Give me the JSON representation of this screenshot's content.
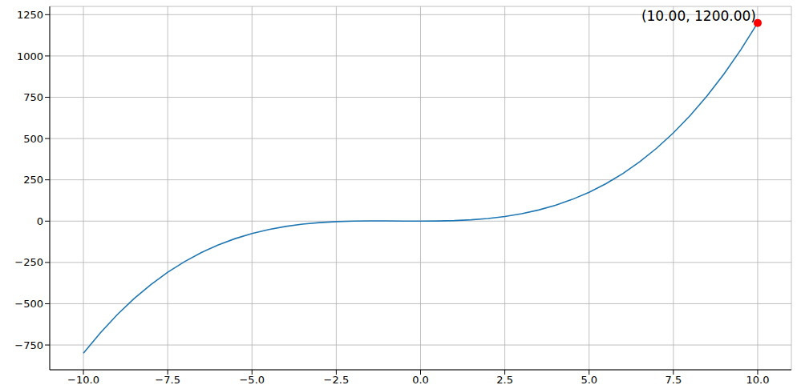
{
  "chart_data": {
    "type": "line",
    "x": [
      -10,
      -9.5,
      -9,
      -8.5,
      -8,
      -7.5,
      -7,
      -6.5,
      -6,
      -5.5,
      -5,
      -4.5,
      -4,
      -3.5,
      -3,
      -2.5,
      -2,
      -1.5,
      -1,
      -0.5,
      0,
      0.5,
      1,
      1.5,
      2,
      2.5,
      3,
      3.5,
      4,
      4.5,
      5,
      5.5,
      6,
      6.5,
      7,
      7.5,
      8,
      8.5,
      9,
      9.5,
      10
    ],
    "values": [
      -800,
      -676.9,
      -567,
      -469.6,
      -384,
      -309.4,
      -245,
      -190.1,
      -144,
      -105.9,
      -75,
      -50.6,
      -32,
      -18.4,
      -9,
      -3.1,
      0,
      1.1,
      1,
      0.4,
      0,
      0.6,
      3,
      7.9,
      16,
      28.1,
      45,
      67.4,
      96,
      131.6,
      175,
      226.9,
      288,
      359.1,
      441,
      534.4,
      640,
      758.6,
      891,
      1037.9,
      1200
    ],
    "color": "#1f77b4",
    "xlim": [
      -11,
      11
    ],
    "xticks": [
      {
        "value": -10,
        "label": "−10.0"
      },
      {
        "value": -7.5,
        "label": "−7.5"
      },
      {
        "value": -5,
        "label": "−5.0"
      },
      {
        "value": -2.5,
        "label": "−2.5"
      },
      {
        "value": 0,
        "label": "0.0"
      },
      {
        "value": 2.5,
        "label": "2.5"
      },
      {
        "value": 5,
        "label": "5.0"
      },
      {
        "value": 7.5,
        "label": "7.5"
      },
      {
        "value": 10,
        "label": "10.0"
      }
    ],
    "ylim": [
      -900,
      1300
    ],
    "yticks": [
      {
        "value": -750,
        "label": "−750"
      },
      {
        "value": -500,
        "label": "−500"
      },
      {
        "value": -250,
        "label": "−250"
      },
      0,
      250,
      500,
      750,
      1000,
      1250
    ],
    "grid": true,
    "annotations": [
      {
        "x": 10,
        "y": 1200,
        "text": "(10.00, 1200.00)",
        "color": "#ff0000"
      }
    ]
  }
}
